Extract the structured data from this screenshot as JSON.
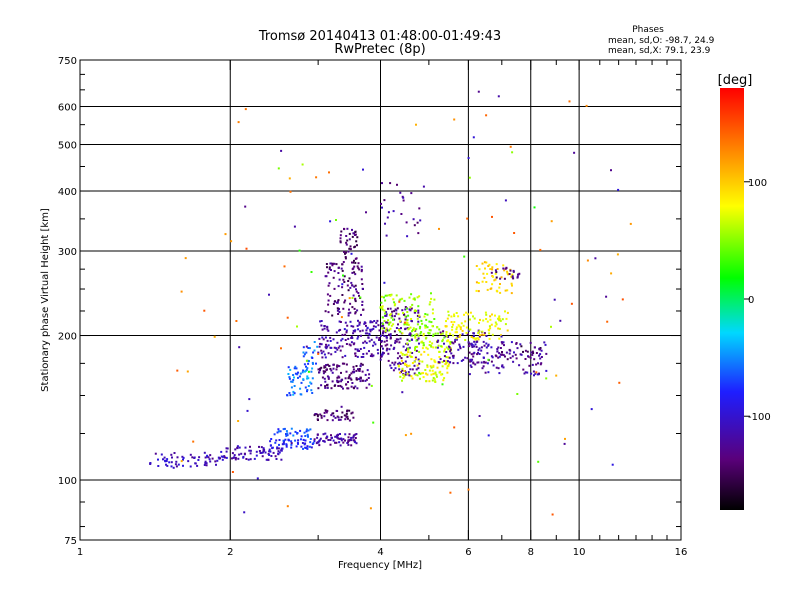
{
  "chart_data": {
    "type": "scatter",
    "title": "Tromsø 20140413 01:48:00-01:49:43",
    "subtitle": "RwPretec (8p)",
    "xlabel": "Frequency [MHz]",
    "ylabel": "Stationary phase Virtual Height [km]",
    "x_scale": "log",
    "y_scale": "log",
    "xlim": [
      1,
      16
    ],
    "ylim": [
      75,
      750
    ],
    "x_ticks": [
      "1",
      "2",
      "4",
      "6",
      "8",
      "10",
      "16"
    ],
    "x_tick_values": [
      1,
      2,
      4,
      6,
      8,
      10,
      16
    ],
    "y_ticks": [
      "750",
      "600",
      "500",
      "400",
      "300",
      "200",
      "100",
      "75"
    ],
    "y_tick_values": [
      750,
      600,
      500,
      400,
      300,
      200,
      100,
      75
    ],
    "grid": true,
    "phases": {
      "heading": "Phases",
      "o_label": "mean, sd,O:",
      "o_mean": -98.7,
      "o_sd": 24.9,
      "x_label": "mean, sd,X:",
      "x_mean": 79.1,
      "x_sd": 23.9
    },
    "colorbar": {
      "label": "[deg]",
      "range": [
        -180,
        180
      ],
      "ticks": [
        "100",
        "0",
        "-100"
      ],
      "tick_values": [
        100,
        0,
        -100
      ]
    },
    "clusters": [
      {
        "x": [
          1.38,
          1.9
        ],
        "y": [
          106,
          114
        ],
        "phase": -110,
        "n": 60
      },
      {
        "x": [
          1.9,
          2.55
        ],
        "y": [
          110,
          118
        ],
        "phase": -112,
        "n": 80
      },
      {
        "x": [
          2.4,
          2.95
        ],
        "y": [
          116,
          122
        ],
        "phase": -80,
        "n": 50
      },
      {
        "x": [
          2.45,
          2.9
        ],
        "y": [
          123,
          128
        ],
        "phase": -70,
        "n": 30
      },
      {
        "x": [
          2.6,
          2.95
        ],
        "y": [
          150,
          175
        ],
        "phase": -55,
        "n": 55
      },
      {
        "x": [
          2.8,
          3.0
        ],
        "y": [
          170,
          195
        ],
        "phase": -60,
        "n": 20
      },
      {
        "x": [
          2.95,
          3.6
        ],
        "y": [
          118,
          125
        ],
        "phase": -120,
        "n": 70
      },
      {
        "x": [
          2.95,
          3.55
        ],
        "y": [
          133,
          140
        ],
        "phase": -140,
        "n": 45
      },
      {
        "x": [
          3.0,
          3.8
        ],
        "y": [
          155,
          175
        ],
        "phase": -135,
        "n": 120
      },
      {
        "x": [
          3.0,
          4.2
        ],
        "y": [
          180,
          215
        ],
        "phase": -118,
        "n": 180
      },
      {
        "x": [
          3.1,
          3.7
        ],
        "y": [
          220,
          285
        ],
        "phase": -138,
        "n": 110
      },
      {
        "x": [
          3.3,
          3.6
        ],
        "y": [
          280,
          335
        ],
        "phase": -140,
        "n": 40
      },
      {
        "x": [
          4.0,
          4.8
        ],
        "y": [
          165,
          230
        ],
        "phase": -125,
        "n": 140
      },
      {
        "x": [
          4.0,
          5.2
        ],
        "y": [
          200,
          245
        ],
        "phase": 55,
        "n": 110
      },
      {
        "x": [
          4.3,
          5.5
        ],
        "y": [
          160,
          185
        ],
        "phase": 75,
        "n": 100
      },
      {
        "x": [
          4.5,
          5.6
        ],
        "y": [
          185,
          210
        ],
        "phase": 60,
        "n": 70
      },
      {
        "x": [
          5.2,
          6.6
        ],
        "y": [
          175,
          205
        ],
        "phase": -122,
        "n": 90
      },
      {
        "x": [
          5.4,
          7.2
        ],
        "y": [
          195,
          225
        ],
        "phase": 80,
        "n": 100
      },
      {
        "x": [
          6.2,
          7.4
        ],
        "y": [
          245,
          285
        ],
        "phase": 95,
        "n": 50
      },
      {
        "x": [
          6.6,
          7.6
        ],
        "y": [
          262,
          278
        ],
        "phase": -135,
        "n": 22
      },
      {
        "x": [
          6.0,
          8.6
        ],
        "y": [
          165,
          195
        ],
        "phase": -120,
        "n": 90
      },
      {
        "x": [
          6.8,
          8.7
        ],
        "y": [
          178,
          192
        ],
        "phase": -140,
        "n": 35
      },
      {
        "x": [
          4.0,
          4.9
        ],
        "y": [
          320,
          420
        ],
        "phase": -125,
        "n": 25
      },
      {
        "x": [
          1.5,
          13.0
        ],
        "y": [
          80,
          700
        ],
        "phase": 130,
        "n": 60
      },
      {
        "x": [
          2.0,
          12.0
        ],
        "y": [
          85,
          650
        ],
        "phase": -110,
        "n": 40
      },
      {
        "x": [
          2.5,
          9.0
        ],
        "y": [
          100,
          500
        ],
        "phase": 40,
        "n": 25
      }
    ]
  }
}
